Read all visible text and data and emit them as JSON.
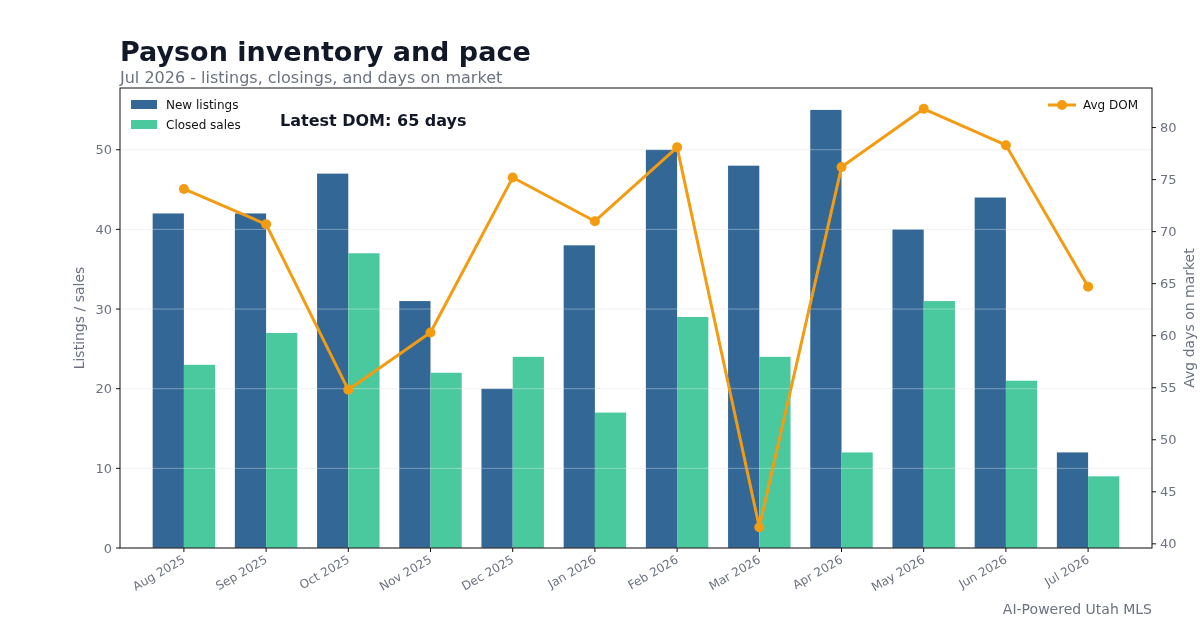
{
  "chart_data": {
    "type": "bar",
    "title": "Payson inventory and pace",
    "subtitle": "Jul 2026 - listings, closings, and days on market",
    "categories": [
      "Aug 2025",
      "Sep 2025",
      "Oct 2025",
      "Nov 2025",
      "Dec 2025",
      "Jan 2026",
      "Feb 2026",
      "Mar 2026",
      "Apr 2026",
      "May 2026",
      "Jun 2026",
      "Jul 2026"
    ],
    "series": [
      {
        "name": "New listings",
        "color": "#336795",
        "values": [
          42,
          42,
          47,
          31,
          20,
          38,
          50,
          48,
          55,
          40,
          44,
          12
        ]
      },
      {
        "name": "Closed sales",
        "color": "#4bc99e",
        "values": [
          23,
          27,
          37,
          22,
          24,
          17,
          29,
          24,
          12,
          31,
          21,
          9
        ]
      },
      {
        "name": "Avg DOM",
        "type": "line",
        "axis": "y2",
        "color": "#f39c12",
        "marker": "circle",
        "values": [
          74.1,
          70.7,
          54.8,
          60.3,
          75.2,
          71.0,
          78.1,
          41.6,
          76.2,
          81.8,
          78.3,
          64.7
        ]
      }
    ],
    "ylabel": "Listings / sales",
    "y2label": "Avg days on market",
    "ylim": [
      0,
      57.75
    ],
    "yticks": [
      0,
      10,
      20,
      30,
      40,
      50
    ],
    "y2lim": [
      39.6,
      83.8
    ],
    "y2ticks": [
      40,
      45,
      50,
      55,
      60,
      65,
      70,
      75,
      80
    ],
    "grid": "y",
    "legend": "top",
    "annotations": [
      "Latest DOM: 65 days",
      "AI-Powered Utah MLS"
    ]
  }
}
